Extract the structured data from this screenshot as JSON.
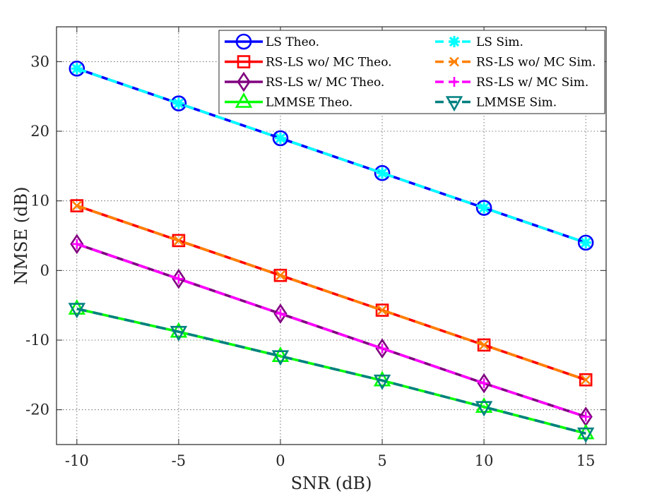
{
  "chart_data": {
    "type": "line",
    "title": "",
    "xlabel": "SNR (dB)",
    "ylabel": "NMSE (dB)",
    "xlim": [
      -11,
      16
    ],
    "ylim": [
      -25,
      35
    ],
    "xticks": [
      -10,
      -5,
      0,
      5,
      10,
      15
    ],
    "yticks": [
      -20,
      -10,
      0,
      10,
      20,
      30
    ],
    "xtick_labels": [
      "-10",
      "-5",
      "0",
      "5",
      "10",
      "15"
    ],
    "ytick_labels": [
      "-20",
      "-10",
      "0",
      "10",
      "20",
      "30"
    ],
    "grid": true,
    "legend_position": "top-right",
    "x": [
      -10,
      -5,
      0,
      5,
      10,
      15
    ],
    "series": [
      {
        "name": "LS Theo.",
        "values": [
          29,
          24,
          19,
          14,
          9,
          4
        ],
        "color": "#0000ff",
        "dashed": false,
        "marker": "circle",
        "filled": false
      },
      {
        "name": "LS Sim.",
        "values": [
          29,
          24,
          19,
          14,
          9,
          4
        ],
        "color": "#00ffff",
        "dashed": true,
        "marker": "asterisk",
        "filled": false
      },
      {
        "name": "RS-LS wo/ MC Theo.",
        "values": [
          9.3,
          4.3,
          -0.7,
          -5.7,
          -10.7,
          -15.7
        ],
        "color": "#ff0000",
        "dashed": false,
        "marker": "square",
        "filled": false
      },
      {
        "name": "RS-LS wo/ MC Sim.",
        "values": [
          9.3,
          4.3,
          -0.7,
          -5.7,
          -10.7,
          -15.7
        ],
        "color": "#ff8000",
        "dashed": true,
        "marker": "x",
        "filled": false
      },
      {
        "name": "RS-LS w/ MC Theo.",
        "values": [
          3.8,
          -1.2,
          -6.2,
          -11.2,
          -16.2,
          -21.0
        ],
        "color": "#800080",
        "dashed": false,
        "marker": "diamond",
        "filled": false
      },
      {
        "name": "RS-LS w/ MC Sim.",
        "values": [
          3.8,
          -1.2,
          -6.2,
          -11.2,
          -16.2,
          -21.0
        ],
        "color": "#ff00ff",
        "dashed": true,
        "marker": "plus",
        "filled": false
      },
      {
        "name": "LMMSE Theo.",
        "values": [
          -5.5,
          -8.8,
          -12.3,
          -15.8,
          -19.6,
          -23.4
        ],
        "color": "#00ff00",
        "dashed": false,
        "marker": "triangle-up",
        "filled": false
      },
      {
        "name": "LMMSE Sim.",
        "values": [
          -5.5,
          -8.8,
          -12.3,
          -15.8,
          -19.6,
          -23.4
        ],
        "color": "#008080",
        "dashed": true,
        "marker": "triangle-down",
        "filled": false
      }
    ]
  }
}
